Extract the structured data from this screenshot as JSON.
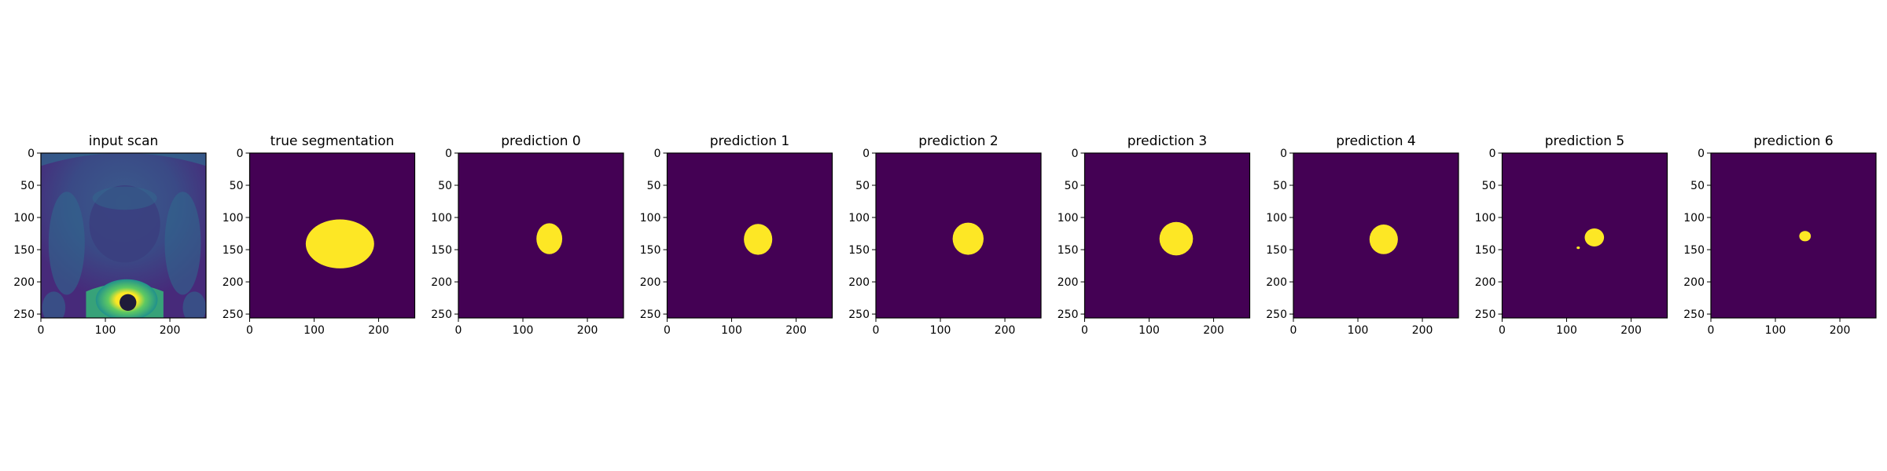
{
  "figure": {
    "background": "#ffffff"
  },
  "colors": {
    "background_class": "#440154",
    "foreground_class": "#fde725",
    "scan_dark": "#472a7a",
    "scan_mid": "#31688e",
    "scan_teal": "#35b779",
    "scan_bright": "#fde725"
  },
  "chart_data": [
    {
      "type": "heatmap",
      "title": "input scan",
      "content": "image",
      "xlim": [
        0,
        256
      ],
      "ylim": [
        256,
        0
      ],
      "xticks": [
        0,
        100,
        200
      ],
      "yticks": [
        0,
        50,
        100,
        150,
        200,
        250
      ],
      "colormap": "viridis"
    },
    {
      "type": "heatmap",
      "title": "true segmentation",
      "content": "mask",
      "xlim": [
        0,
        256
      ],
      "ylim": [
        256,
        0
      ],
      "xticks": [
        0,
        100,
        200
      ],
      "yticks": [
        0,
        50,
        100,
        150,
        200,
        250
      ],
      "colormap": "viridis",
      "blob": {
        "cx": 140,
        "cy": 141,
        "rx": 53,
        "ry": 38
      }
    },
    {
      "type": "heatmap",
      "title": "prediction 0",
      "content": "mask",
      "xlim": [
        0,
        256
      ],
      "ylim": [
        256,
        0
      ],
      "xticks": [
        0,
        100,
        200
      ],
      "yticks": [
        0,
        50,
        100,
        150,
        200,
        250
      ],
      "colormap": "viridis",
      "blob": {
        "cx": 141,
        "cy": 133,
        "rx": 20,
        "ry": 24
      }
    },
    {
      "type": "heatmap",
      "title": "prediction 1",
      "content": "mask",
      "xlim": [
        0,
        256
      ],
      "ylim": [
        256,
        0
      ],
      "xticks": [
        0,
        100,
        200
      ],
      "yticks": [
        0,
        50,
        100,
        150,
        200,
        250
      ],
      "colormap": "viridis",
      "blob": {
        "cx": 141,
        "cy": 134,
        "rx": 22,
        "ry": 24
      }
    },
    {
      "type": "heatmap",
      "title": "prediction 2",
      "content": "mask",
      "xlim": [
        0,
        256
      ],
      "ylim": [
        256,
        0
      ],
      "xticks": [
        0,
        100,
        200
      ],
      "yticks": [
        0,
        50,
        100,
        150,
        200,
        250
      ],
      "colormap": "viridis",
      "blob": {
        "cx": 143,
        "cy": 133,
        "rx": 24,
        "ry": 25
      }
    },
    {
      "type": "heatmap",
      "title": "prediction 3",
      "content": "mask",
      "xlim": [
        0,
        256
      ],
      "ylim": [
        256,
        0
      ],
      "xticks": [
        0,
        100,
        200
      ],
      "yticks": [
        0,
        50,
        100,
        150,
        200,
        250
      ],
      "colormap": "viridis",
      "blob": {
        "cx": 142,
        "cy": 133,
        "rx": 26,
        "ry": 26
      }
    },
    {
      "type": "heatmap",
      "title": "prediction 4",
      "content": "mask",
      "xlim": [
        0,
        256
      ],
      "ylim": [
        256,
        0
      ],
      "xticks": [
        0,
        100,
        200
      ],
      "yticks": [
        0,
        50,
        100,
        150,
        200,
        250
      ],
      "colormap": "viridis",
      "blob": {
        "cx": 140,
        "cy": 134,
        "rx": 22,
        "ry": 23
      }
    },
    {
      "type": "heatmap",
      "title": "prediction 5",
      "content": "mask",
      "xlim": [
        0,
        256
      ],
      "ylim": [
        256,
        0
      ],
      "xticks": [
        0,
        100,
        200
      ],
      "yticks": [
        0,
        50,
        100,
        150,
        200,
        250
      ],
      "colormap": "viridis",
      "blob": {
        "cx": 143,
        "cy": 131,
        "rx": 15,
        "ry": 14
      },
      "speck": {
        "cx": 118,
        "cy": 147
      }
    },
    {
      "type": "heatmap",
      "title": "prediction 6",
      "content": "mask",
      "xlim": [
        0,
        256
      ],
      "ylim": [
        256,
        0
      ],
      "xticks": [
        0,
        100,
        200
      ],
      "yticks": [
        0,
        50,
        100,
        150,
        200,
        250
      ],
      "colormap": "viridis",
      "blob": {
        "cx": 146,
        "cy": 129,
        "rx": 9,
        "ry": 8
      }
    }
  ]
}
